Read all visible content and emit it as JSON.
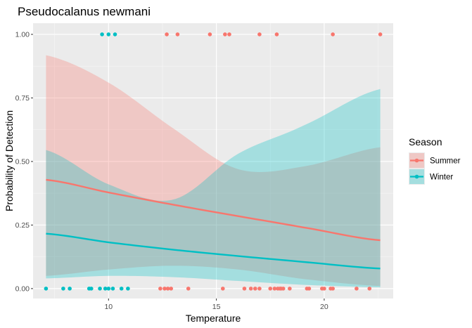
{
  "chart_data": {
    "type": "scatter",
    "title": "Pseudocalanus newmani",
    "xlabel": "Temperature",
    "ylabel": "Probability of Detection",
    "xlim": [
      6.5,
      23.2
    ],
    "ylim": [
      -0.039,
      1.044
    ],
    "x_ticks": [
      10,
      15,
      20
    ],
    "x_tick_labels": [
      "10",
      "15",
      "20"
    ],
    "y_ticks": [
      0,
      0.25,
      0.5,
      0.75,
      1.0
    ],
    "y_tick_labels": [
      "0.00",
      "0.25",
      "0.50",
      "0.75",
      "1.00"
    ],
    "grid": true,
    "legend": {
      "title": "Season",
      "position": "right"
    },
    "series": [
      {
        "name": "Summer",
        "color": "#F8766D",
        "fit_x": [
          7.1,
          10.0,
          13.0,
          16.0,
          19.0,
          22.6
        ],
        "fit_y": [
          0.428,
          0.378,
          0.33,
          0.285,
          0.241,
          0.19
        ],
        "ci_lower": [
          0.05,
          0.075,
          0.09,
          0.075,
          0.038,
          0.01
        ],
        "ci_upper": [
          0.918,
          0.81,
          0.63,
          0.47,
          0.48,
          0.556
        ],
        "points_x": [
          12.7,
          13.2,
          14.7,
          15.4,
          15.6,
          17.0,
          17.8,
          20.4,
          22.6,
          12.4,
          12.6,
          12.75,
          12.9,
          13.7,
          15.3,
          16.3,
          16.6,
          16.8,
          17.0,
          17.5,
          17.7,
          17.85,
          17.95,
          18.0,
          18.1,
          18.4,
          19.2,
          19.3,
          19.9,
          20.0,
          20.3,
          20.4,
          21.5,
          22.1
        ],
        "points_y": [
          1,
          1,
          1,
          1,
          1,
          1,
          1,
          1,
          1,
          0,
          0,
          0,
          0,
          0,
          0,
          0,
          0,
          0,
          0,
          0,
          0,
          0,
          0,
          0,
          0,
          0,
          0,
          0,
          0,
          0,
          0,
          0,
          0,
          0
        ]
      },
      {
        "name": "Winter",
        "color": "#00BFC4",
        "fit_x": [
          7.1,
          10.0,
          13.0,
          16.0,
          19.0,
          22.6
        ],
        "fit_y": [
          0.216,
          0.182,
          0.153,
          0.128,
          0.105,
          0.079
        ],
        "ci_lower": [
          0.04,
          0.05,
          0.045,
          0.03,
          0.015,
          0.005
        ],
        "ci_upper": [
          0.545,
          0.41,
          0.35,
          0.53,
          0.64,
          0.785
        ],
        "points_x": [
          9.7,
          10.0,
          10.3,
          7.1,
          7.9,
          8.2,
          9.1,
          9.2,
          9.6,
          9.85,
          10.0,
          10.2,
          10.6,
          10.9
        ],
        "points_y": [
          1,
          1,
          1,
          0,
          0,
          0,
          0,
          0,
          0,
          0,
          0,
          0,
          0,
          0
        ]
      }
    ]
  }
}
